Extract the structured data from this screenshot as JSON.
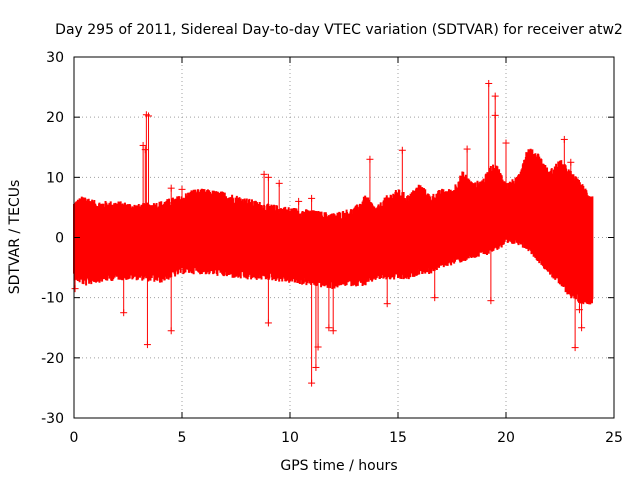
{
  "chart_data": {
    "type": "scatter",
    "title": "Day 295 of 2011, Sidereal Day-to-day VTEC variation (SDTVAR) for receiver atw2",
    "xlabel": "GPS time / hours",
    "ylabel": "SDTVAR / TECUs",
    "xlim": [
      0,
      25
    ],
    "ylim": [
      -30,
      30
    ],
    "xticks": [
      0,
      5,
      10,
      15,
      20,
      25
    ],
    "yticks": [
      -30,
      -20,
      -10,
      0,
      10,
      20,
      30
    ],
    "grid": true,
    "marker": "+",
    "color": "#ff0000",
    "series": [
      {
        "name": "SDTVAR",
        "envelope_hours": [
          0,
          0.5,
          1,
          2,
          3,
          4,
          5,
          5.5,
          6,
          7,
          8,
          9,
          10,
          11,
          12,
          12.5,
          13,
          13.5,
          14,
          14.5,
          15,
          15.5,
          16,
          16.5,
          17,
          17.5,
          18,
          18.5,
          19,
          19.3,
          19.6,
          20,
          20.5,
          21,
          21.5,
          22,
          22.5,
          23,
          23.5,
          24
        ],
        "upper_envelope": [
          5,
          6,
          5,
          5,
          4.5,
          5,
          6,
          7,
          7,
          6.5,
          5.5,
          4.5,
          4,
          3.5,
          3,
          3.5,
          4,
          6,
          4,
          6,
          7,
          6,
          8,
          6,
          7,
          7,
          10,
          8,
          9,
          11,
          11,
          8,
          9,
          14,
          13,
          10,
          12,
          10,
          8,
          6
        ],
        "lower_envelope": [
          -6,
          -7,
          -6.5,
          -6,
          -6,
          -6.5,
          -5,
          -5,
          -5,
          -5.5,
          -6,
          -6,
          -6.5,
          -7,
          -7.5,
          -7,
          -7,
          -7,
          -6,
          -6,
          -6,
          -6,
          -5,
          -5,
          -4,
          -3.5,
          -3,
          -2.5,
          -2,
          -1.5,
          -1,
          -0.5,
          0,
          -1,
          -3,
          -5,
          -7,
          -9,
          -10,
          -10
        ],
        "outliers": [
          [
            0.05,
            -8.5
          ],
          [
            2.3,
            -12.5
          ],
          [
            3.2,
            15.3
          ],
          [
            3.3,
            14.6
          ],
          [
            3.35,
            20.4
          ],
          [
            3.45,
            20.2
          ],
          [
            3.4,
            -17.8
          ],
          [
            4.5,
            -15.5
          ],
          [
            4.5,
            8.2
          ],
          [
            5.0,
            8.0
          ],
          [
            8.8,
            10.5
          ],
          [
            9.0,
            10.0
          ],
          [
            9.0,
            -14.2
          ],
          [
            9.5,
            9.0
          ],
          [
            10.4,
            6.0
          ],
          [
            11.0,
            6.5
          ],
          [
            11.0,
            -24.2
          ],
          [
            11.3,
            -18.2
          ],
          [
            11.2,
            -21.6
          ],
          [
            11.8,
            -15.0
          ],
          [
            12.0,
            -15.5
          ],
          [
            13.7,
            13.0
          ],
          [
            14.5,
            -11.0
          ],
          [
            15.2,
            14.5
          ],
          [
            16.7,
            -10.0
          ],
          [
            18.2,
            14.7
          ],
          [
            19.2,
            25.6
          ],
          [
            19.5,
            23.5
          ],
          [
            19.5,
            20.3
          ],
          [
            19.3,
            -10.5
          ],
          [
            20.0,
            15.7
          ],
          [
            22.7,
            16.3
          ],
          [
            23.0,
            12.5
          ],
          [
            23.2,
            -18.3
          ],
          [
            23.4,
            -12.0
          ],
          [
            23.5,
            -15.0
          ]
        ]
      }
    ]
  }
}
